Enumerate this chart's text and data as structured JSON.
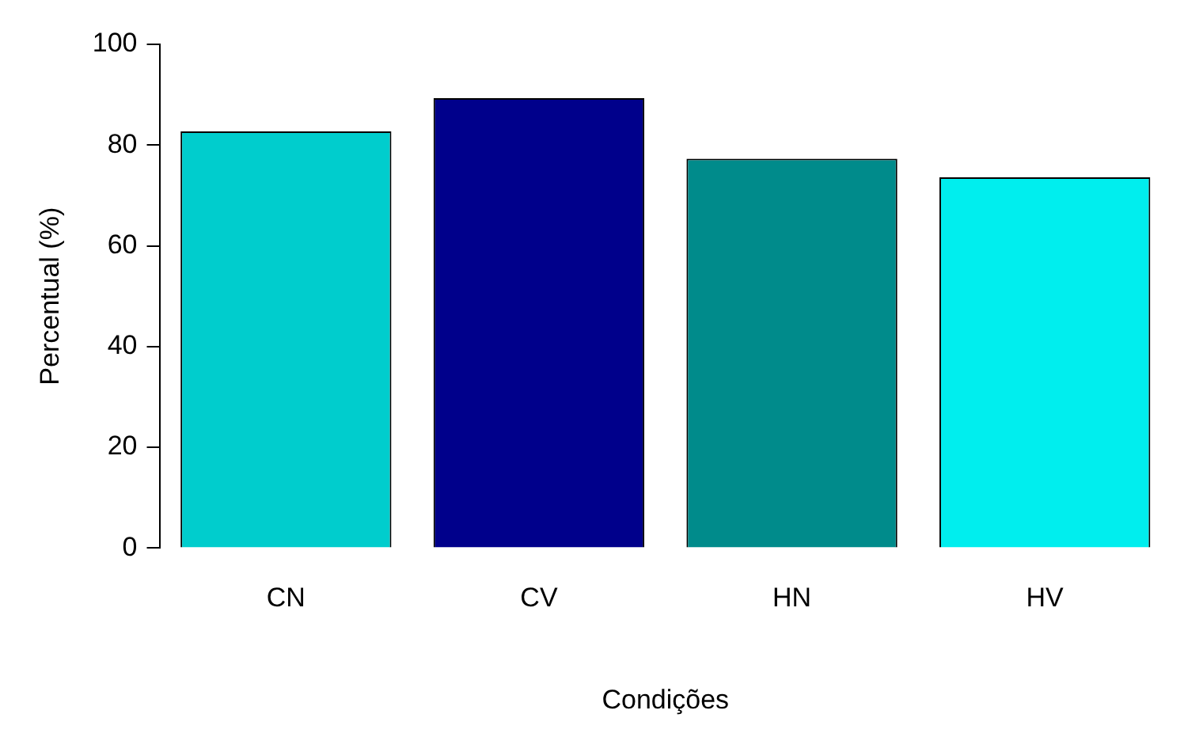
{
  "chart_data": {
    "type": "bar",
    "xlabel": "Condições",
    "ylabel": "Percentual (%)",
    "categories": [
      "CN",
      "CV",
      "HN",
      "HV"
    ],
    "values": [
      82.7,
      89.3,
      77.3,
      73.6
    ],
    "colors": [
      "#00cdcd",
      "#00008b",
      "#008b8b",
      "#00eeee"
    ],
    "ylim": [
      0,
      100
    ],
    "yticks": [
      0,
      20,
      40,
      60,
      80,
      100
    ],
    "grid": false,
    "legend": false
  }
}
